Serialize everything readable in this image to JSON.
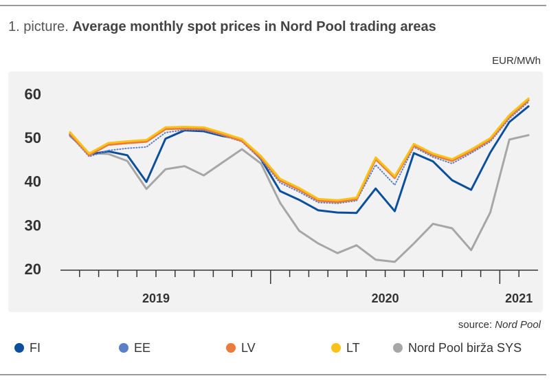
{
  "chart_data": {
    "type": "line",
    "title_prefix": "1. picture.",
    "title": "Average monthly spot prices in Nord Pool trading areas",
    "unit_label": "EUR/MWh",
    "source_label": "source:",
    "source": "Nord Pool",
    "categories": [
      null,
      null,
      null,
      null,
      null,
      "2019",
      null,
      null,
      null,
      null,
      null,
      null,
      null,
      null,
      null,
      null,
      null,
      "2020",
      null,
      null,
      null,
      null,
      null,
      null,
      "2021"
    ],
    "ylim": [
      20,
      65
    ],
    "yticks": [
      20,
      30,
      40,
      50,
      60
    ],
    "grid": false,
    "series": [
      {
        "name": "Nord Pool birža SYS",
        "color": "#a6a6a6",
        "style": "solid",
        "values": [
          50.7,
          46.8,
          46.6,
          45.0,
          38.6,
          43.1,
          43.8,
          41.7,
          44.7,
          47.7,
          44.4,
          35.4,
          29.0,
          26.1,
          23.9,
          25.7,
          22.4,
          21.9,
          26.1,
          30.6,
          29.6,
          24.6,
          33.2,
          49.9,
          50.9
        ]
      },
      {
        "name": "FI",
        "color": "#0b4f9c",
        "style": "solid",
        "values": [
          51.0,
          46.5,
          47.2,
          46.3,
          40.2,
          50.1,
          52.0,
          51.8,
          50.7,
          50.0,
          45.4,
          38.1,
          36.1,
          33.7,
          33.2,
          33.1,
          38.7,
          33.5,
          46.8,
          44.9,
          40.6,
          38.4,
          46.9,
          53.9,
          57.5
        ]
      },
      {
        "name": "EE",
        "color": "#5b7fc4",
        "style": "dotted",
        "values": [
          50.9,
          46.0,
          47.4,
          47.9,
          48.2,
          51.5,
          52.1,
          52.0,
          50.8,
          49.4,
          45.3,
          40.0,
          37.9,
          35.5,
          35.3,
          35.9,
          44.1,
          39.5,
          48.2,
          45.9,
          44.4,
          46.8,
          49.4,
          54.7,
          58.5
        ]
      },
      {
        "name": "LV",
        "color": "#ec7a3a",
        "style": "solid",
        "values": [
          51.2,
          46.3,
          48.7,
          49.1,
          49.4,
          52.3,
          52.4,
          52.3,
          51.0,
          49.6,
          45.7,
          40.5,
          38.4,
          35.9,
          35.6,
          36.2,
          45.4,
          41.1,
          48.5,
          46.3,
          45.0,
          47.2,
          49.8,
          55.1,
          58.9
        ]
      },
      {
        "name": "LT",
        "color": "#f9c21a",
        "style": "solid",
        "values": [
          51.6,
          46.7,
          49.1,
          49.5,
          49.8,
          52.7,
          52.8,
          52.7,
          51.4,
          50.0,
          46.1,
          40.9,
          38.8,
          36.3,
          36.0,
          36.6,
          45.8,
          41.5,
          48.9,
          46.7,
          45.4,
          47.6,
          50.2,
          55.5,
          59.3
        ]
      }
    ],
    "legend_order": [
      1,
      2,
      3,
      4,
      0
    ]
  }
}
